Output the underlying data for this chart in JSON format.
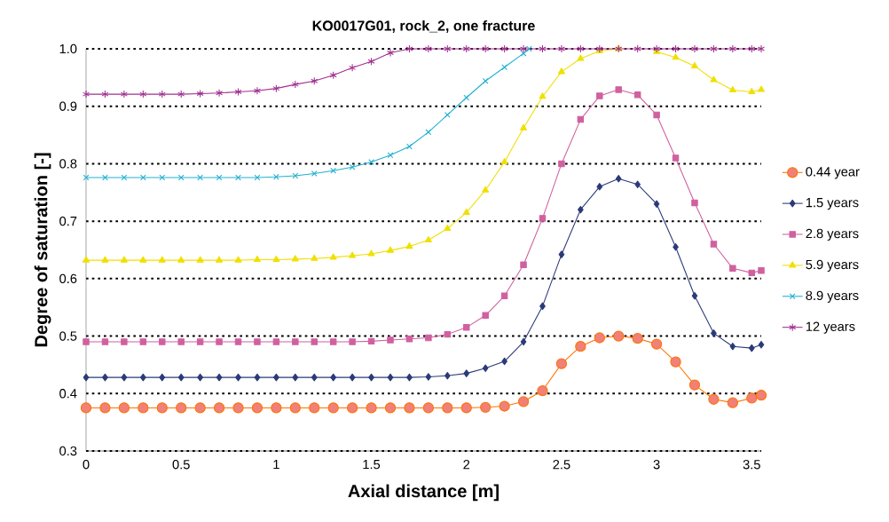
{
  "chart_data": {
    "type": "line",
    "title": "KO0017G01, rock_2, one fracture",
    "xlabel": "Axial distance [m]",
    "ylabel": "Degree of saturation [-]",
    "x": [
      0,
      0.1,
      0.2,
      0.3,
      0.4,
      0.5,
      0.6,
      0.7,
      0.8,
      0.9,
      1.0,
      1.1,
      1.2,
      1.3,
      1.4,
      1.5,
      1.6,
      1.7,
      1.8,
      1.9,
      2.0,
      2.1,
      2.2,
      2.3,
      2.4,
      2.5,
      2.6,
      2.7,
      2.8,
      2.9,
      3.0,
      3.1,
      3.2,
      3.3,
      3.4,
      3.5,
      3.55
    ],
    "series": [
      {
        "name": "0.44 year",
        "color": "#f08078",
        "marker": "circle",
        "values": [
          0.375,
          0.375,
          0.375,
          0.375,
          0.375,
          0.375,
          0.375,
          0.375,
          0.375,
          0.375,
          0.375,
          0.375,
          0.375,
          0.375,
          0.375,
          0.375,
          0.375,
          0.375,
          0.375,
          0.375,
          0.375,
          0.376,
          0.378,
          0.386,
          0.405,
          0.452,
          0.482,
          0.497,
          0.5,
          0.496,
          0.486,
          0.455,
          0.415,
          0.39,
          0.384,
          0.392,
          0.397
        ]
      },
      {
        "name": "1.5 years",
        "color": "#2b3a78",
        "marker": "diamond",
        "values": [
          0.428,
          0.428,
          0.428,
          0.428,
          0.428,
          0.428,
          0.428,
          0.428,
          0.428,
          0.428,
          0.428,
          0.428,
          0.428,
          0.428,
          0.428,
          0.428,
          0.428,
          0.428,
          0.429,
          0.431,
          0.435,
          0.444,
          0.456,
          0.49,
          0.552,
          0.642,
          0.72,
          0.76,
          0.774,
          0.764,
          0.73,
          0.655,
          0.57,
          0.505,
          0.482,
          0.479,
          0.485
        ]
      },
      {
        "name": "2.8 years",
        "color": "#d060a0",
        "marker": "square",
        "values": [
          0.49,
          0.49,
          0.49,
          0.49,
          0.49,
          0.49,
          0.49,
          0.49,
          0.49,
          0.49,
          0.49,
          0.49,
          0.49,
          0.49,
          0.49,
          0.491,
          0.493,
          0.495,
          0.497,
          0.503,
          0.515,
          0.536,
          0.57,
          0.624,
          0.705,
          0.8,
          0.877,
          0.918,
          0.929,
          0.92,
          0.885,
          0.81,
          0.732,
          0.66,
          0.618,
          0.61,
          0.614
        ]
      },
      {
        "name": "5.9 years",
        "color": "#f0e000",
        "marker": "triangle",
        "values": [
          0.632,
          0.632,
          0.632,
          0.632,
          0.632,
          0.632,
          0.632,
          0.632,
          0.632,
          0.633,
          0.633,
          0.634,
          0.635,
          0.637,
          0.64,
          0.643,
          0.649,
          0.656,
          0.667,
          0.687,
          0.715,
          0.754,
          0.803,
          0.862,
          0.917,
          0.96,
          0.983,
          0.996,
          1.0,
          null,
          0.995,
          0.985,
          0.97,
          0.946,
          0.928,
          0.925,
          0.929
        ]
      },
      {
        "name": "8.9 years",
        "color": "#20b0d0",
        "marker": "cross",
        "x": [
          0,
          0.1,
          0.2,
          0.3,
          0.4,
          0.5,
          0.6,
          0.7,
          0.8,
          0.9,
          1.0,
          1.1,
          1.2,
          1.3,
          1.4,
          1.5,
          1.6,
          1.7,
          1.8,
          1.9,
          2.0,
          2.1,
          2.2,
          2.3,
          2.33
        ],
        "values": [
          0.776,
          0.776,
          0.776,
          0.776,
          0.776,
          0.776,
          0.776,
          0.776,
          0.776,
          0.776,
          0.777,
          0.779,
          0.783,
          0.788,
          0.794,
          0.803,
          0.815,
          0.83,
          0.855,
          0.885,
          0.915,
          0.944,
          0.968,
          0.992,
          1.0
        ]
      },
      {
        "name": "12 years",
        "color": "#a03090",
        "marker": "cross",
        "values": [
          0.921,
          0.921,
          0.921,
          0.921,
          0.921,
          0.921,
          0.922,
          0.923,
          0.925,
          0.927,
          0.931,
          0.938,
          0.944,
          0.954,
          0.967,
          0.978,
          0.993,
          1.0,
          1.0,
          1.0,
          1.0,
          1.0,
          1.0,
          1.0,
          1.0,
          1.0,
          1.0,
          1.0,
          1.0,
          1.0,
          1.0,
          1.0,
          1.0,
          1.0,
          1.0,
          1.0,
          1.0
        ]
      }
    ],
    "xlim": [
      0,
      3.55
    ],
    "ylim": [
      0.3,
      1.0
    ],
    "xticks": [
      0,
      0.5,
      1,
      1.5,
      2,
      2.5,
      3,
      3.5
    ],
    "yticks": [
      0.3,
      0.4,
      0.5,
      0.6,
      0.7,
      0.8,
      0.9,
      {
        "value": 1.0,
        "label": "1.0"
      }
    ],
    "grid": "y",
    "legend": "right",
    "line_style": "solid"
  }
}
